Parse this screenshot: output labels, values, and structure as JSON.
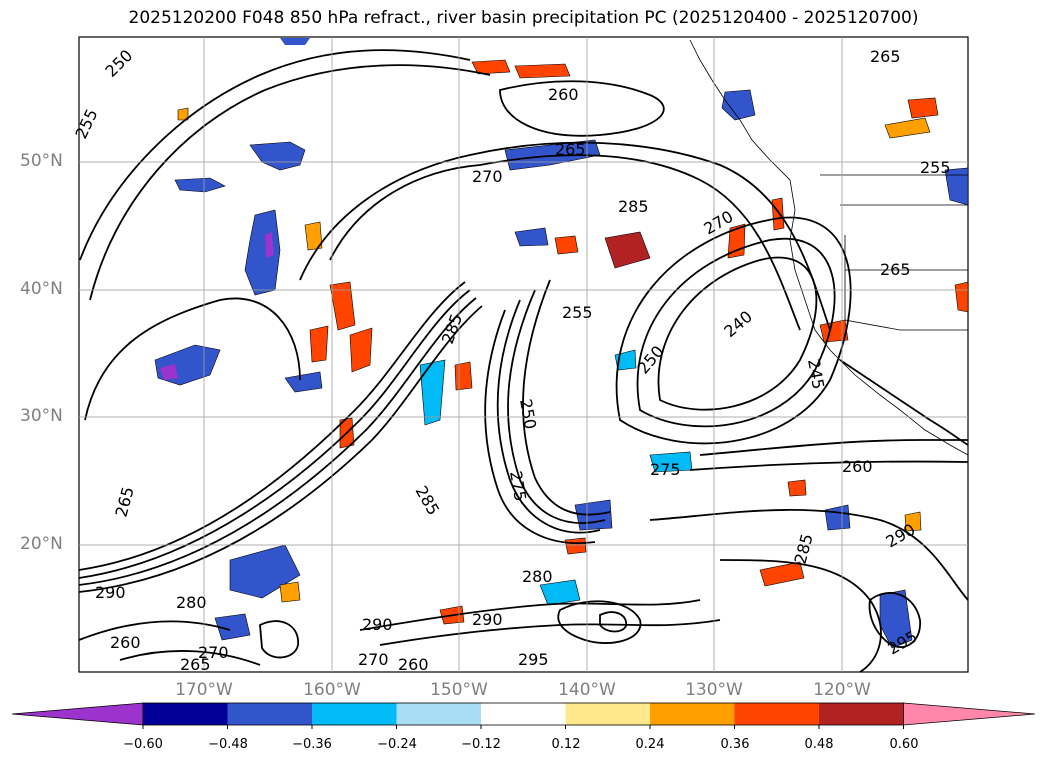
{
  "title": "2025120200 F048 850 hPa refract., river basin precipitation PC (2025120400 - 2025120700)",
  "lat_labels": [
    "50°N",
    "40°N",
    "30°N",
    "20°N"
  ],
  "lon_labels": [
    "170°W",
    "160°W",
    "150°W",
    "140°W",
    "130°W",
    "120°W"
  ],
  "colorbar": {
    "colors": [
      "#9c33cc",
      "#000096",
      "#3355cc",
      "#00bbf5",
      "#aadcf5",
      "#ffffff",
      "#ffe88c",
      "#ffa000",
      "#ff4400",
      "#b22222",
      "#ff88aa"
    ],
    "ticks": [
      "−0.60",
      "−0.48",
      "−0.36",
      "−0.24",
      "−0.12",
      "0.12",
      "0.24",
      "0.36",
      "0.48",
      "0.60"
    ]
  },
  "contour_labels": [
    "265",
    "250",
    "255",
    "260",
    "270",
    "265",
    "285",
    "270",
    "265",
    "240",
    "255",
    "245",
    "250",
    "285",
    "250",
    "255",
    "275",
    "260",
    "275",
    "265",
    "285",
    "290",
    "280",
    "280",
    "290",
    "290",
    "260",
    "265",
    "270",
    "270",
    "260",
    "295",
    "290",
    "295",
    "285"
  ]
}
